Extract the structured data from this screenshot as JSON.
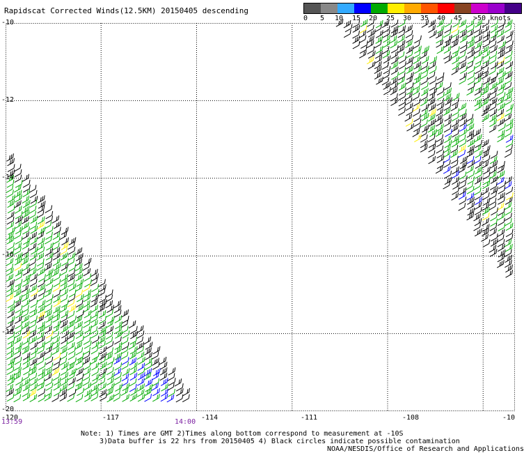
{
  "title": "Rapidscat Corrected Winds(12.5KM) 20150405 descending",
  "legend": {
    "colors": [
      "#555555",
      "#888888",
      "#33aaff",
      "#0000ff",
      "#00aa00",
      "#ffee00",
      "#ffaa00",
      "#ff5500",
      "#ff0000",
      "#884422",
      "#cc00cc",
      "#9900cc",
      "#440088"
    ],
    "labels": [
      "0",
      "5",
      "10",
      "15",
      "20",
      "25",
      "30",
      "35",
      "40",
      "45",
      ">50 knots"
    ]
  },
  "map": {
    "lat_range": [
      -10,
      -20
    ],
    "lon_range": [
      -120,
      -104
    ],
    "y_labels": [
      "-10",
      "-12",
      "-14",
      "-16",
      "-18",
      "-20"
    ],
    "x_labels": [
      "-120",
      "-117",
      "-114",
      "-111",
      "-108",
      "-10"
    ],
    "grid": "dotted",
    "barb_colors": {
      "black": "#000000",
      "green": "#00aa00",
      "blue": "#0000ff",
      "yellow": "#ffee00"
    }
  },
  "times": {
    "start": "13:59",
    "end": "14:00"
  },
  "notes": {
    "line1": "Note: 1) Times are GMT 2)Times along bottom correspond to measurement at -10S",
    "line2": "3)Data buffer is 22 hrs from 20150405 4) Black circles indicate possible contamination",
    "line3": "NOAA/NESDIS/Office of Research and Applications"
  }
}
